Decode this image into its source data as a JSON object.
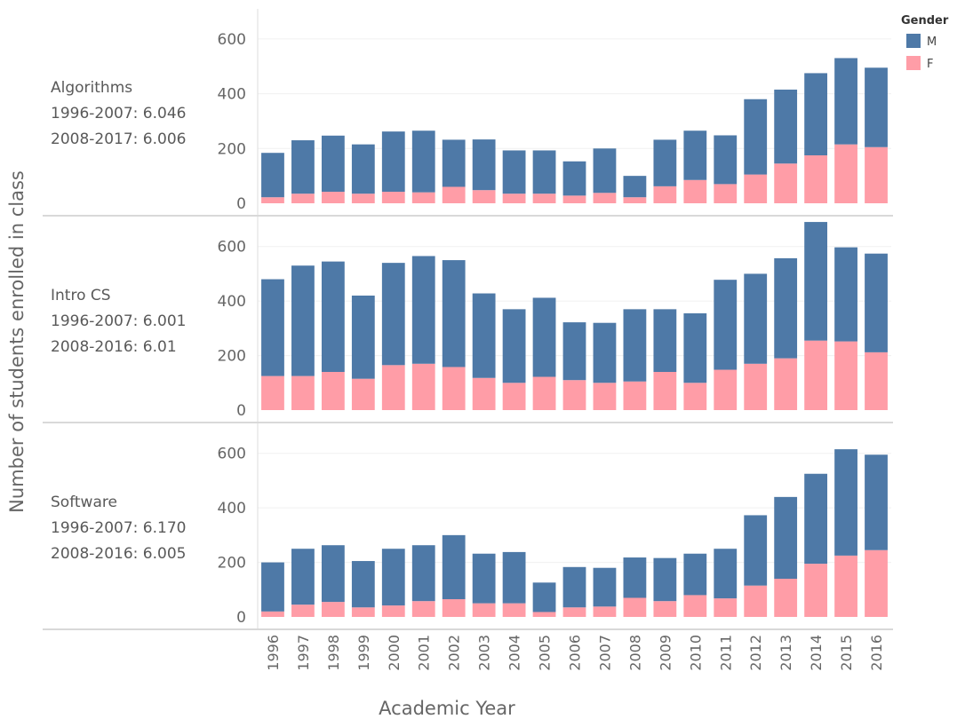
{
  "chart_data": {
    "type": "bar",
    "stacked": true,
    "x": [
      "1996",
      "1997",
      "1998",
      "1999",
      "2000",
      "2001",
      "2002",
      "2003",
      "2004",
      "2005",
      "2006",
      "2007",
      "2008",
      "2009",
      "2010",
      "2011",
      "2012",
      "2013",
      "2014",
      "2015",
      "2016"
    ],
    "xlabel": "Academic Year",
    "ylabel": "Number of students enrolled in class",
    "ylim": [
      0,
      700
    ],
    "yticks": [
      0,
      200,
      400,
      600
    ],
    "grid": "horizontal",
    "legend": {
      "title": "Gender",
      "position": "top-right",
      "items": [
        {
          "label": "M",
          "color": "#4e79a7"
        },
        {
          "label": "F",
          "color": "#ff9da7"
        }
      ]
    },
    "panels": [
      {
        "label_lines": [
          "Algorithms",
          "1996-2007: 6.046",
          "2008-2017: 6.006"
        ],
        "series": [
          {
            "name": "F",
            "color": "#ff9da7",
            "values": [
              22,
              35,
              42,
              35,
              42,
              40,
              60,
              48,
              35,
              35,
              28,
              38,
              22,
              62,
              85,
              70,
              105,
              145,
              175,
              215,
              205
            ]
          },
          {
            "name": "M",
            "color": "#4e79a7",
            "values": [
              162,
              195,
              205,
              180,
              220,
              225,
              172,
              185,
              158,
              158,
              125,
              162,
              78,
              170,
              180,
              178,
              275,
              270,
              300,
              315,
              290
            ]
          }
        ]
      },
      {
        "label_lines": [
          "Intro CS",
          "1996-2007: 6.001",
          "2008-2016: 6.01"
        ],
        "series": [
          {
            "name": "F",
            "color": "#ff9da7",
            "values": [
              125,
              125,
              140,
              115,
              165,
              170,
              158,
              118,
              100,
              122,
              110,
              100,
              105,
              140,
              100,
              148,
              170,
              190,
              255,
              252,
              212
            ]
          },
          {
            "name": "M",
            "color": "#4e79a7",
            "values": [
              355,
              405,
              405,
              305,
              375,
              395,
              392,
              310,
              270,
              290,
              212,
              220,
              265,
              230,
              255,
              330,
              330,
              367,
              435,
              345,
              362
            ]
          }
        ]
      },
      {
        "label_lines": [
          "Software",
          "1996-2007: 6.170",
          "2008-2016: 6.005"
        ],
        "series": [
          {
            "name": "F",
            "color": "#ff9da7",
            "values": [
              20,
              45,
              55,
              35,
              42,
              58,
              65,
              50,
              50,
              18,
              35,
              38,
              70,
              58,
              80,
              68,
              115,
              140,
              195,
              225,
              245
            ]
          },
          {
            "name": "M",
            "color": "#4e79a7",
            "values": [
              180,
              205,
              208,
              170,
              208,
              205,
              235,
              182,
              188,
              108,
              148,
              142,
              148,
              158,
              152,
              182,
              258,
              300,
              330,
              390,
              350
            ]
          }
        ]
      }
    ]
  }
}
